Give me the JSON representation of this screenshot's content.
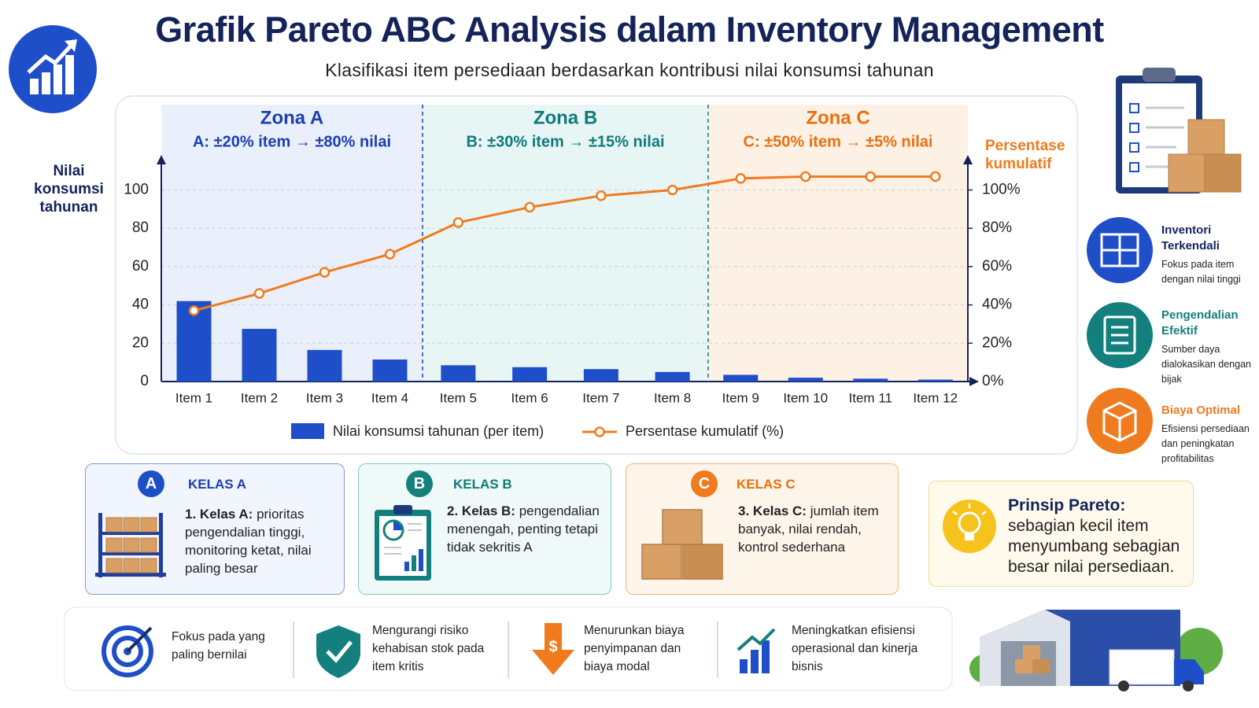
{
  "header": {
    "title": "Grafik Pareto ABC Analysis dalam Inventory Management",
    "subtitle": "Klasifikasi item persediaan berdasarkan kontribusi nilai konsumsi tahunan"
  },
  "chart_data": {
    "type": "bar",
    "y_label": "Nilai konsumsi tahunan",
    "y2_label": "Persentase kumulatif",
    "categories": [
      "Item 1",
      "Item 2",
      "Item 3",
      "Item 4",
      "Item 5",
      "Item 6",
      "Item 7",
      "Item 8",
      "Item 9",
      "Item 10",
      "Item 11",
      "Item 12"
    ],
    "series": [
      {
        "name": "Nilai konsumsi tahunan (per item)",
        "color": "#1f4fc8",
        "values": [
          42,
          27.5,
          16.5,
          11.5,
          8.5,
          7.5,
          6.5,
          5,
          3.5,
          2,
          1.5,
          1
        ]
      },
      {
        "name": "Persentase kumulatif (%)",
        "color": "#f07b1f",
        "axis": "y2",
        "values": [
          37,
          46,
          57,
          66.5,
          83,
          91,
          97,
          100,
          106,
          107,
          107,
          107
        ]
      }
    ],
    "ylim": [
      0,
      115
    ],
    "yticks": [
      0,
      20,
      40,
      60,
      80,
      100
    ],
    "y2lim": [
      0,
      115
    ],
    "y2ticks": [
      {
        "value": 0,
        "label": "0%"
      },
      {
        "value": 20,
        "label": "20%"
      },
      {
        "value": 40,
        "label": "40%"
      },
      {
        "value": 60,
        "label": "60%"
      },
      {
        "value": 80,
        "label": "80%"
      },
      {
        "value": 100,
        "label": "100%"
      }
    ],
    "grid": true,
    "zones": [
      {
        "title": "Zona A",
        "subtitle": "A: ±20% item → ±80% nilai",
        "color": "#1c3fae",
        "background": "#eaf0fb"
      },
      {
        "title": "Zona B",
        "subtitle": "B: ±30% item → ±15% nilai",
        "color": "#107a7a",
        "background": "#e7f6f5"
      },
      {
        "title": "Zona C",
        "subtitle": "C: ±50% item → ±5% nilai",
        "color": "#e8700f",
        "background": "#fdf1e6"
      }
    ]
  },
  "side_features": [
    {
      "title": "Inventori Terkendali",
      "text": "Fokus pada item dengan nilai tinggi"
    },
    {
      "title": "Pengendalian Efektif",
      "text": "Sumber daya dialokasikan dengan bijak"
    },
    {
      "title": "Biaya Optimal",
      "text": "Efisiensi persediaan dan peningkatan profitabilitas"
    }
  ],
  "classes": [
    {
      "badge": "A",
      "title": "KELAS A",
      "number": "1.",
      "label": "Kelas A:",
      "text": "prioritas pengendalian tinggi, monitoring ketat, nilai paling besar"
    },
    {
      "badge": "B",
      "title": "KELAS B",
      "number": "2.",
      "label": "Kelas B:",
      "text": "pengendalian menengah, penting tetapi tidak sekritis A"
    },
    {
      "badge": "C",
      "title": "KELAS C",
      "number": "3.",
      "label": "Kelas C:",
      "text": "jumlah item banyak, nilai rendah, kontrol sederhana"
    }
  ],
  "pareto": {
    "title": "Prinsip Pareto:",
    "text": "sebagian kecil item menyumbang sebagian besar nilai persediaan."
  },
  "benefits": [
    "Fokus pada yang paling bernilai",
    "Mengurangi risiko kehabisan stok pada item kritis",
    "Menurunkan biaya penyimpanan dan biaya modal",
    "Meningkatkan efisiensi operasional dan kinerja bisnis"
  ]
}
